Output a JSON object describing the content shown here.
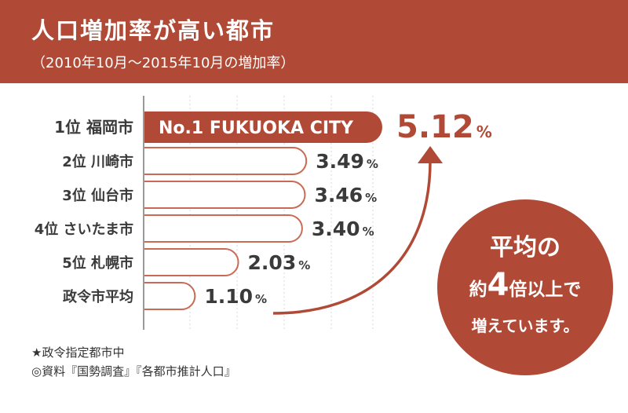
{
  "header": {
    "title": "人口増加率が高い都市",
    "subtitle": "（2010年10月〜2015年10月の増加率）"
  },
  "chart_data": {
    "type": "bar",
    "orientation": "horizontal",
    "categories": [
      "1位 福岡市",
      "2位 川崎市",
      "3位 仙台市",
      "4位 さいたま市",
      "5位 札幌市",
      "政令市平均"
    ],
    "values": [
      5.12,
      3.49,
      3.46,
      3.4,
      2.03,
      1.1
    ],
    "value_labels": [
      "5.12",
      "3.49",
      "3.46",
      "3.40",
      "2.03",
      "1.10"
    ],
    "unit": "%",
    "highlight_index": 0,
    "highlight_label": "No.1 FUKUOKA CITY",
    "grid": true,
    "colors": {
      "accent": "#b04a36",
      "bar_outline": "#c96a55",
      "grid": "#d9d9d9",
      "text": "#3a3a3a"
    }
  },
  "callout": {
    "line1": "平均の",
    "line2_pre": "約",
    "line2_num": "4",
    "line2_post": "倍以上で",
    "line3": "増えています。"
  },
  "notes": [
    "★政令指定都市中",
    "◎資料『国勢調査』『各都市推計人口』"
  ]
}
